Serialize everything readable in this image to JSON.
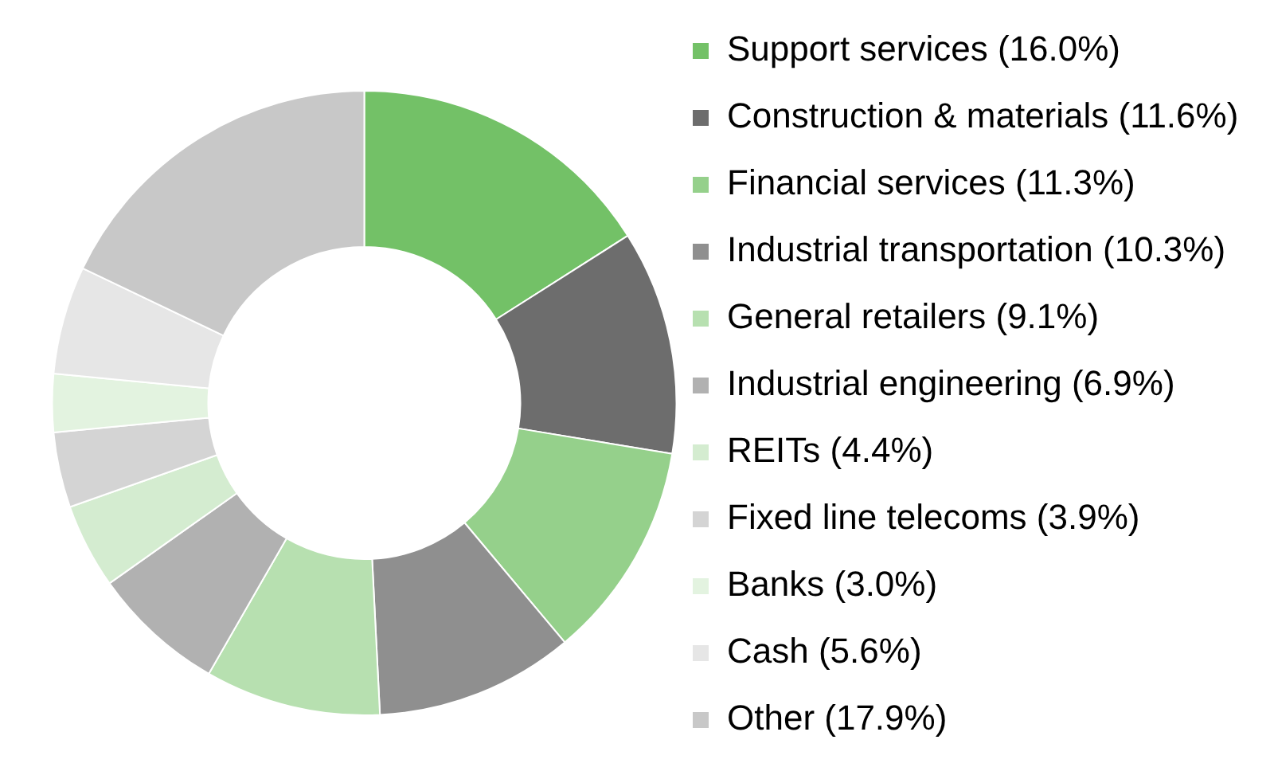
{
  "chart_data": {
    "type": "donut",
    "categories": [
      "Support services (16.0%)",
      "Construction & materials (11.6%)",
      "Financial services (11.3%)",
      "Industrial transportation (10.3%)",
      "General retailers (9.1%)",
      "Industrial engineering (6.9%)",
      "REITs (4.4%)",
      "Fixed line telecoms (3.9%)",
      "Banks (3.0%)",
      "Cash (5.6%)",
      "Other (17.9%)"
    ],
    "values": [
      16.0,
      11.6,
      11.3,
      10.3,
      9.1,
      6.9,
      4.4,
      3.9,
      3.0,
      5.6,
      17.9
    ],
    "colors": [
      "#73c167",
      "#6d6d6d",
      "#95d08b",
      "#8f8f8f",
      "#b7e0b0",
      "#b1b1b1",
      "#d4ecd0",
      "#d4d4d4",
      "#e3f3e0",
      "#e6e6e6",
      "#c8c8c8"
    ],
    "legend": "right"
  }
}
